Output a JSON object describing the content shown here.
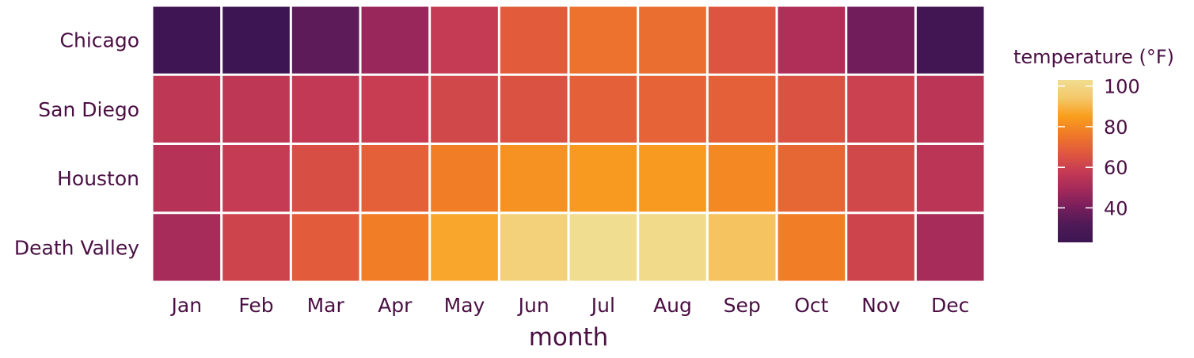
{
  "chart_data": {
    "type": "heatmap",
    "title": "",
    "xlabel": "month",
    "ylabel": "",
    "x": [
      "Jan",
      "Feb",
      "Mar",
      "Apr",
      "May",
      "Jun",
      "Jul",
      "Aug",
      "Sep",
      "Oct",
      "Nov",
      "Dec"
    ],
    "y": [
      "Chicago",
      "San Diego",
      "Houston",
      "Death Valley"
    ],
    "values": [
      [
        24,
        23,
        35,
        47,
        58,
        68,
        74,
        73,
        66,
        52,
        39,
        25
      ],
      [
        56,
        56,
        57,
        59,
        62,
        65,
        69,
        70,
        69,
        65,
        60,
        55
      ],
      [
        54,
        58,
        64,
        69,
        77,
        82,
        84,
        84,
        80,
        71,
        62,
        55
      ],
      [
        50,
        61,
        68,
        77,
        87,
        98,
        103,
        102,
        93,
        77,
        61,
        50
      ]
    ],
    "colorbar": {
      "title": "temperature (°F)",
      "ticks": [
        40,
        60,
        80,
        100
      ],
      "range": [
        23,
        103
      ],
      "colors": [
        "#3d1552",
        "#4f1a57",
        "#7a1e5c",
        "#a62b5a",
        "#c73c53",
        "#e15a3c",
        "#f07a28",
        "#f99f1d",
        "#f4c86a",
        "#f1dd8f"
      ]
    },
    "cell_border_color": "#ffffff",
    "legend_position": "right"
  }
}
